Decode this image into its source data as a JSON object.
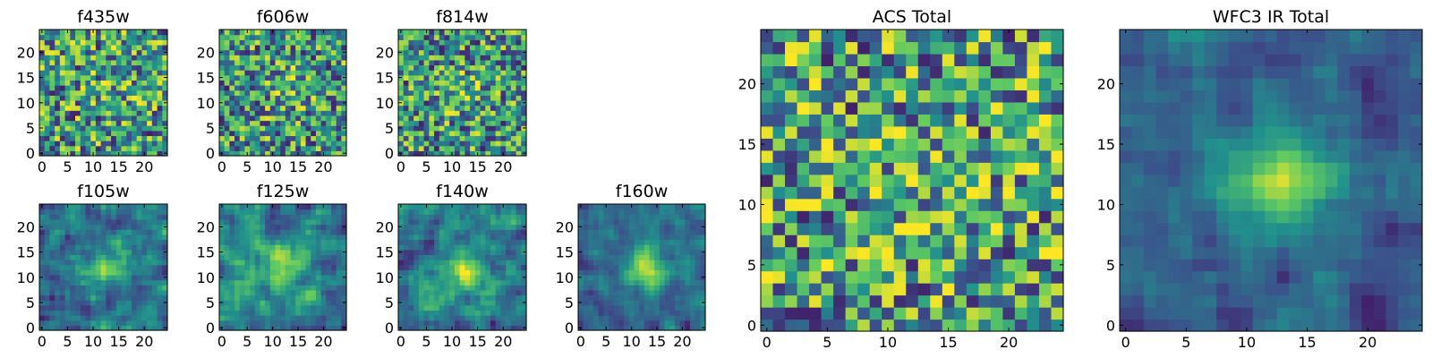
{
  "figure": {
    "colormap": "viridis",
    "colors": [
      "#440154",
      "#3b528b",
      "#21918c",
      "#5ec962",
      "#fde725"
    ],
    "background": "#ffffff"
  },
  "chart_data": [
    {
      "id": "f435w",
      "type": "heatmap",
      "title": "f435w",
      "grid": [
        25,
        25
      ],
      "xlim": [
        -0.5,
        24.5
      ],
      "ylim": [
        -0.5,
        24.5
      ],
      "xticks": [
        "0",
        "5",
        "10",
        "15",
        "20"
      ],
      "yticks": [
        "0",
        "5",
        "10",
        "15",
        "20"
      ],
      "pattern": "noise",
      "peak": [
        15,
        15
      ],
      "peak_strength": 0.12,
      "seed": 11,
      "grid_lines": false
    },
    {
      "id": "f606w",
      "type": "heatmap",
      "title": "f606w",
      "grid": [
        25,
        25
      ],
      "xlim": [
        -0.5,
        24.5
      ],
      "ylim": [
        -0.5,
        24.5
      ],
      "xticks": [
        "0",
        "5",
        "10",
        "15",
        "20"
      ],
      "yticks": [
        "0",
        "5",
        "10",
        "15",
        "20"
      ],
      "pattern": "noise",
      "peak": [
        13,
        13
      ],
      "peak_strength": 0.15,
      "seed": 23,
      "grid_lines": false
    },
    {
      "id": "f814w",
      "type": "heatmap",
      "title": "f814w",
      "grid": [
        25,
        25
      ],
      "xlim": [
        -0.5,
        24.5
      ],
      "ylim": [
        -0.5,
        24.5
      ],
      "xticks": [
        "0",
        "5",
        "10",
        "15",
        "20"
      ],
      "yticks": [
        "0",
        "5",
        "10",
        "15",
        "20"
      ],
      "pattern": "noise",
      "peak": [
        12,
        12
      ],
      "peak_strength": 0.15,
      "seed": 37,
      "grid_lines": false
    },
    {
      "id": "f105w",
      "type": "heatmap",
      "title": "f105w",
      "grid": [
        25,
        25
      ],
      "xlim": [
        -0.5,
        24.5
      ],
      "ylim": [
        -0.5,
        24.5
      ],
      "xticks": [
        "0",
        "5",
        "10",
        "15",
        "20"
      ],
      "yticks": [
        "0",
        "5",
        "10",
        "15",
        "20"
      ],
      "pattern": "smooth",
      "peak": [
        13,
        12
      ],
      "peak_strength": 0.4,
      "seed": 41,
      "grid_lines": false
    },
    {
      "id": "f125w",
      "type": "heatmap",
      "title": "f125w",
      "grid": [
        25,
        25
      ],
      "xlim": [
        -0.5,
        24.5
      ],
      "ylim": [
        -0.5,
        24.5
      ],
      "xticks": [
        "0",
        "5",
        "10",
        "15",
        "20"
      ],
      "yticks": [
        "0",
        "5",
        "10",
        "15",
        "20"
      ],
      "pattern": "smooth",
      "peak": [
        12,
        12
      ],
      "peak_strength": 0.35,
      "seed": 53,
      "grid_lines": false
    },
    {
      "id": "f140w",
      "type": "heatmap",
      "title": "f140w",
      "grid": [
        25,
        25
      ],
      "xlim": [
        -0.5,
        24.5
      ],
      "ylim": [
        -0.5,
        24.5
      ],
      "xticks": [
        "0",
        "5",
        "10",
        "15",
        "20"
      ],
      "yticks": [
        "0",
        "5",
        "10",
        "15",
        "20"
      ],
      "pattern": "smooth",
      "peak": [
        12,
        11
      ],
      "peak_strength": 0.4,
      "seed": 67,
      "grid_lines": false
    },
    {
      "id": "f160w",
      "type": "heatmap",
      "title": "f160w",
      "grid": [
        25,
        25
      ],
      "xlim": [
        -0.5,
        24.5
      ],
      "ylim": [
        -0.5,
        24.5
      ],
      "xticks": [
        "0",
        "5",
        "10",
        "15",
        "20"
      ],
      "yticks": [
        "0",
        "5",
        "10",
        "15",
        "20"
      ],
      "pattern": "smooth",
      "peak": [
        13,
        12
      ],
      "peak_strength": 0.55,
      "seed": 79,
      "grid_lines": false
    },
    {
      "id": "acs-total",
      "type": "heatmap",
      "title": "ACS Total",
      "grid": [
        25,
        25
      ],
      "xlim": [
        -0.5,
        24.5
      ],
      "ylim": [
        -0.5,
        24.5
      ],
      "xticks": [
        "0",
        "5",
        "10",
        "15",
        "20"
      ],
      "yticks": [
        "0",
        "5",
        "10",
        "15",
        "20"
      ],
      "pattern": "noise",
      "peak": [
        12,
        12
      ],
      "peak_strength": 0.08,
      "seed": 97,
      "grid_lines": false
    },
    {
      "id": "wfc3-ir-total",
      "type": "heatmap",
      "title": "WFC3 IR Total",
      "grid": [
        25,
        25
      ],
      "xlim": [
        -0.5,
        24.5
      ],
      "ylim": [
        -0.5,
        24.5
      ],
      "xticks": [
        "0",
        "5",
        "10",
        "15",
        "20"
      ],
      "yticks": [
        "0",
        "5",
        "10",
        "15",
        "20"
      ],
      "pattern": "smooth",
      "peak": [
        13,
        12
      ],
      "peak_strength": 0.6,
      "seed": 131,
      "grid_lines": false
    }
  ]
}
